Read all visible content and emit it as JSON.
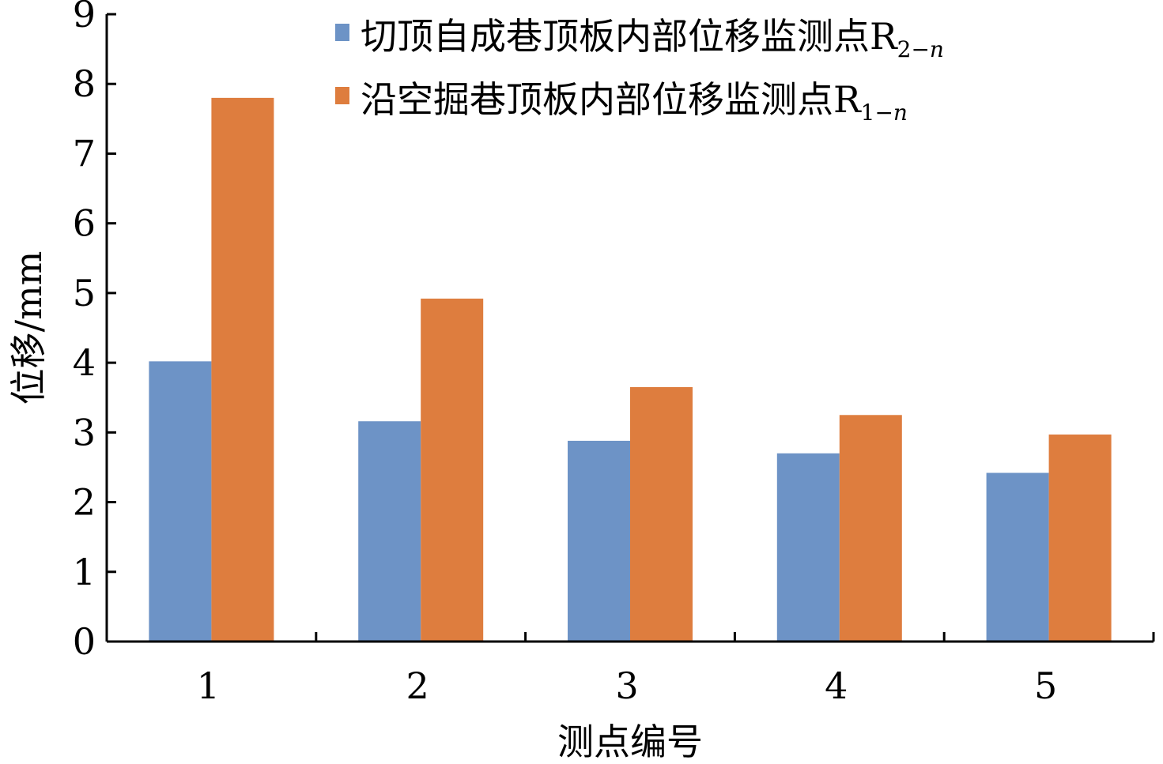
{
  "chart_data": {
    "type": "bar",
    "title": "",
    "xlabel": "测点编号",
    "ylabel": "位移/mm",
    "categories": [
      "1",
      "2",
      "3",
      "4",
      "5"
    ],
    "ylim": [
      0,
      9
    ],
    "yticks": [
      "0",
      "1",
      "2",
      "3",
      "4",
      "5",
      "6",
      "7",
      "8",
      "9"
    ],
    "grid": false,
    "legend_position": "top-right",
    "series": [
      {
        "name": "切顶自成巷顶板内部位移监测点R2−n",
        "legend_text": "切顶自成巷顶板内部位移监测点R",
        "legend_subscript": "2−",
        "legend_subscript_italic": "n",
        "color": "#6d93c6",
        "values": [
          4.02,
          3.16,
          2.88,
          2.7,
          2.42
        ]
      },
      {
        "name": "沿空掘巷顶板内部位移监测点R1−n",
        "legend_text": "沿空掘巷顶板内部位移监测点R",
        "legend_subscript": "1−",
        "legend_subscript_italic": "n",
        "color": "#de7d3e",
        "values": [
          7.8,
          4.92,
          3.65,
          3.25,
          2.97
        ]
      }
    ]
  }
}
